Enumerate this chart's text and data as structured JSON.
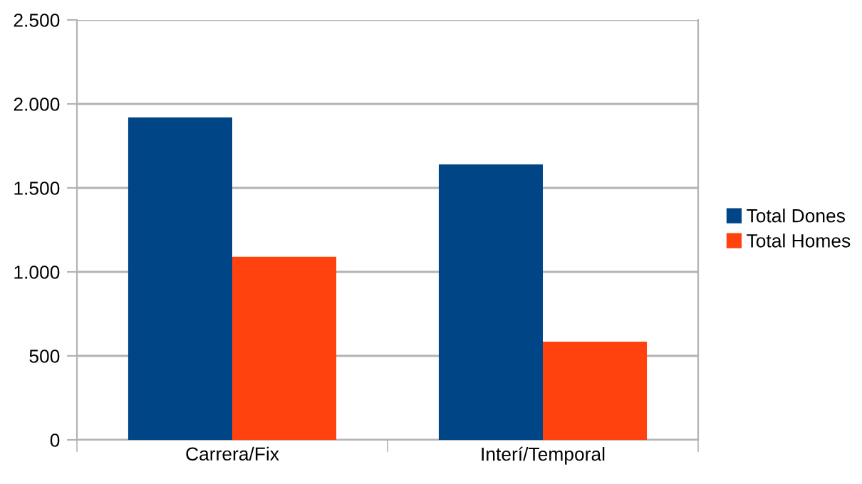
{
  "chart_data": {
    "type": "bar",
    "categories": [
      "Carrera/Fix",
      "Interí/Temporal"
    ],
    "series": [
      {
        "name": "Total Dones",
        "color": "#004586",
        "values": [
          1920,
          1640
        ]
      },
      {
        "name": "Total Homes",
        "color": "#ff420e",
        "values": [
          1090,
          585
        ]
      }
    ],
    "ylim": [
      0,
      2500
    ],
    "yticks": [
      {
        "value": 0,
        "label": "0"
      },
      {
        "value": 500,
        "label": "500"
      },
      {
        "value": 1000,
        "label": "1.000"
      },
      {
        "value": 1500,
        "label": "1.500"
      },
      {
        "value": 2000,
        "label": "2.000"
      },
      {
        "value": 2500,
        "label": "2.500"
      }
    ],
    "grid": "y",
    "legend": "right"
  }
}
